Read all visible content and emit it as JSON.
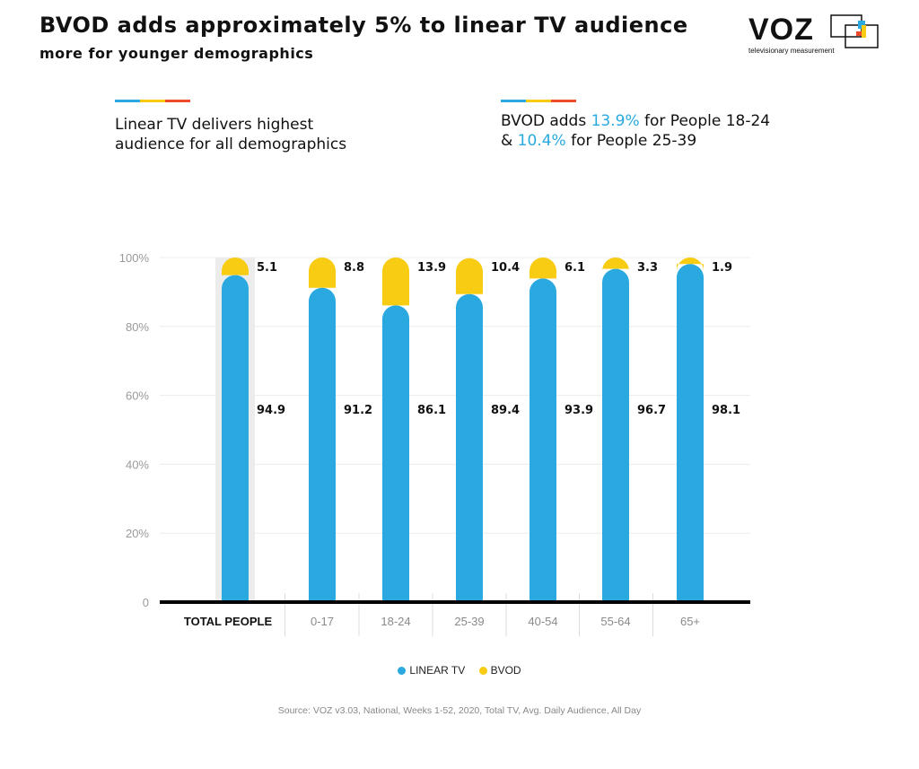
{
  "header": {
    "title": "BVOD adds approximately 5% to linear TV audience",
    "subtitle": "more for younger demographics"
  },
  "logo": {
    "word": "VOZ",
    "tagline": "televisionary measurement"
  },
  "colors": {
    "linear": "#29a9e0",
    "bvod": "#f8cc12",
    "stripe": [
      "#29a9e0",
      "#f8cc12",
      "#ef4a2c"
    ],
    "highlight_column": "#ececec"
  },
  "callouts": {
    "left": {
      "line1": "Linear TV delivers highest",
      "line2": "audience for all demographics"
    },
    "right": {
      "line1_pre": "BVOD adds ",
      "line1_hl": "13.9%",
      "line1_post": " for People 18-24",
      "line2_pre": "& ",
      "line2_hl": "10.4%",
      "line2_post": " for People 25-39"
    }
  },
  "legend": {
    "linear": "LINEAR TV",
    "bvod": "BVOD"
  },
  "source": "Source: VOZ v3.03, National, Weeks 1-52, 2020, Total TV, Avg. Daily Audience, All Day",
  "chart_data": {
    "type": "bar",
    "stacked": true,
    "categories": [
      "TOTAL PEOPLE",
      "0-17",
      "18-24",
      "25-39",
      "40-54",
      "55-64",
      "65+"
    ],
    "series": [
      {
        "name": "LINEAR TV",
        "values": [
          94.9,
          91.2,
          86.1,
          89.4,
          93.9,
          96.7,
          98.1
        ]
      },
      {
        "name": "BVOD",
        "values": [
          5.1,
          8.8,
          13.9,
          10.4,
          6.1,
          3.3,
          1.9
        ]
      }
    ],
    "ytick_labels": [
      "0",
      "20%",
      "40%",
      "60%",
      "80%",
      "100%"
    ],
    "yticks": [
      0,
      20,
      40,
      60,
      80,
      100
    ],
    "ylim": [
      0,
      100
    ],
    "grid": true,
    "highlighted_category": "TOTAL PEOPLE",
    "legend_position": "bottom-center"
  }
}
